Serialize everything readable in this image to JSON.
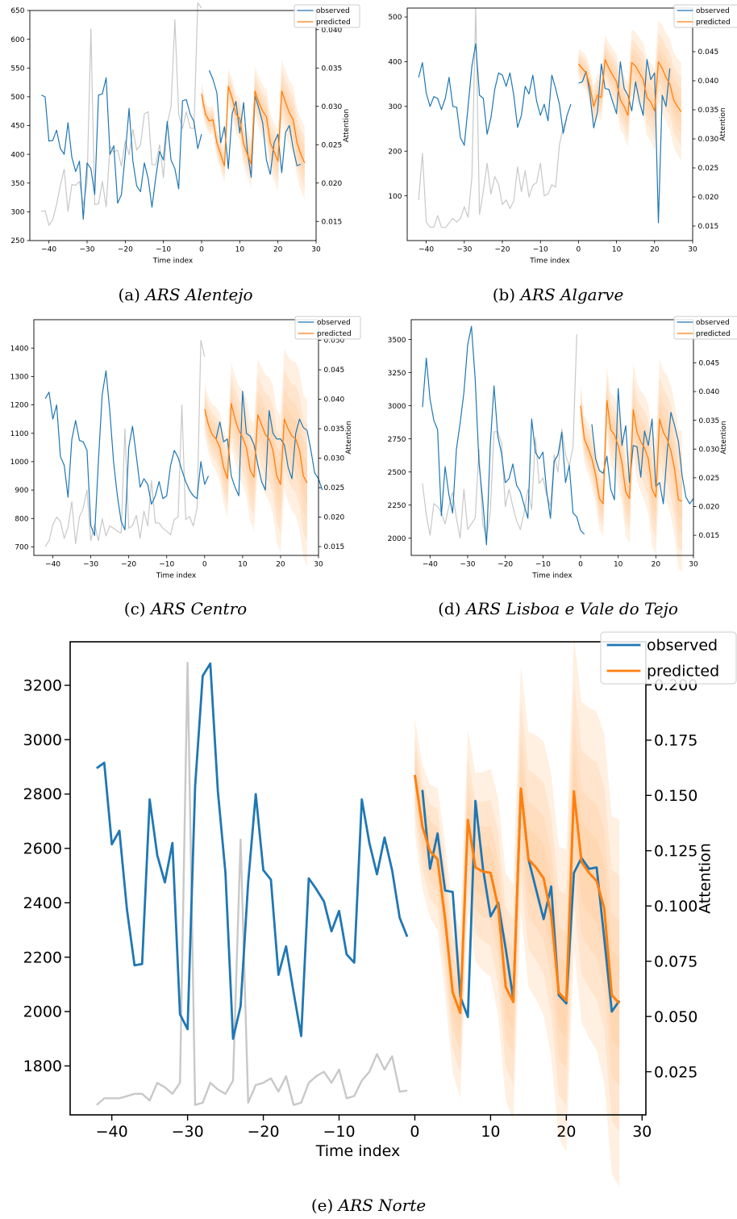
{
  "legend": {
    "observed": "observed",
    "predicted": "predicted"
  },
  "colors": {
    "observed": "#1f77b4",
    "predicted": "#ff7f0e",
    "attention": "#c8c8c8",
    "band": "#ffc896"
  },
  "chart_data": [
    {
      "id": "a",
      "type": "line",
      "caption_prefix": "(a)",
      "caption_title": "ARS Alentejo",
      "xlabel": "Time index",
      "y2label": "Attention",
      "xlim": [
        -45,
        30
      ],
      "ylim": [
        250,
        650
      ],
      "y2lim": [
        0.0125,
        0.0425
      ],
      "xticks": [
        -40,
        -30,
        -20,
        -10,
        0,
        10,
        20,
        30
      ],
      "yticks": [
        250,
        300,
        350,
        400,
        450,
        500,
        550,
        600,
        650
      ],
      "y2ticks": [
        0.015,
        0.02,
        0.025,
        0.03,
        0.035,
        0.04
      ],
      "observed": {
        "x0": -42,
        "values": [
          503,
          500,
          423,
          424,
          442,
          410,
          400,
          455,
          395,
          370,
          388,
          287,
          385,
          375,
          330,
          503,
          505,
          533,
          400,
          415,
          315,
          330,
          400,
          480,
          388,
          345,
          335,
          385,
          358,
          308,
          360,
          405,
          390,
          457,
          390,
          375,
          340,
          493,
          495,
          470,
          457,
          410,
          435,
          null,
          546,
          530,
          507,
          420,
          448,
          375,
          470,
          492,
          437,
          490,
          405,
          360,
          502,
          480,
          455,
          390,
          365,
          420,
          435,
          368,
          438,
          450,
          410,
          380,
          383
        ]
      },
      "predicted": {
        "x0": 0,
        "values": [
          505,
          470,
          458,
          460,
          420,
          400,
          380,
          518,
          498,
          470,
          462,
          418,
          400,
          383,
          510,
          490,
          475,
          465,
          420,
          405,
          388,
          510,
          490,
          472,
          460,
          420,
          400,
          385
        ]
      },
      "band_width": 0.09,
      "attention": {
        "x0": -42,
        "values": [
          0.0163,
          0.0164,
          0.0145,
          0.0152,
          0.0172,
          0.0197,
          0.0218,
          0.0163,
          0.0198,
          0.0197,
          0.0202,
          0.0171,
          0.0201,
          0.0401,
          0.0172,
          0.0173,
          0.0202,
          0.0169,
          0.0248,
          0.024,
          0.0243,
          0.0222,
          0.0255,
          0.0237,
          0.027,
          0.0243,
          0.025,
          0.029,
          0.0293,
          0.0224,
          0.0224,
          0.025,
          0.0207,
          0.0277,
          0.03,
          0.0413,
          0.029,
          0.0271,
          0.0293,
          0.0272,
          0.0271,
          0.0435,
          0.0428
        ]
      }
    },
    {
      "id": "b",
      "type": "line",
      "caption_prefix": "(b)",
      "caption_title": "ARS Algarve",
      "xlabel": "Time index",
      "y2label": "Attention",
      "xlim": [
        -45,
        30
      ],
      "ylim": [
        0,
        520
      ],
      "y2lim": [
        0.0125,
        0.0525
      ],
      "xticks": [
        -40,
        -30,
        -20,
        -10,
        0,
        10,
        20,
        30
      ],
      "yticks": [
        100,
        200,
        300,
        400,
        500
      ],
      "y2ticks": [
        0.015,
        0.02,
        0.025,
        0.03,
        0.035,
        0.04,
        0.045,
        0.05
      ],
      "observed": {
        "x0": -42,
        "values": [
          365,
          398,
          330,
          300,
          322,
          318,
          293,
          318,
          365,
          300,
          298,
          230,
          213,
          300,
          390,
          440,
          325,
          318,
          238,
          275,
          338,
          375,
          370,
          345,
          375,
          325,
          253,
          280,
          345,
          328,
          370,
          312,
          280,
          305,
          268,
          370,
          340,
          305,
          240,
          280,
          305,
          null,
          352,
          355,
          378,
          328,
          252,
          288,
          395,
          340,
          338,
          310,
          284,
          400,
          340,
          325,
          290,
          355,
          312,
          280,
          405,
          360,
          375,
          40,
          325,
          300,
          385
        ]
      },
      "predicted": {
        "x0": 0,
        "values": [
          395,
          385,
          375,
          345,
          300,
          325,
          320,
          405,
          385,
          370,
          355,
          315,
          300,
          280,
          398,
          390,
          375,
          360,
          320,
          310,
          290,
          400,
          385,
          365,
          350,
          315,
          300,
          288
        ]
      },
      "band_width": 0.12,
      "attention": {
        "x0": -42,
        "values": [
          0.0195,
          0.0275,
          0.0157,
          0.0148,
          0.0148,
          0.0168,
          0.0148,
          0.0147,
          0.0155,
          0.0163,
          0.0157,
          0.0163,
          0.0183,
          0.0165,
          0.0235,
          0.0525,
          0.017,
          0.021,
          0.0258,
          0.0205,
          0.0235,
          0.0222,
          0.0187,
          0.0195,
          0.018,
          0.0193,
          0.0252,
          0.0209,
          0.0245,
          0.02,
          0.022,
          0.0225,
          0.0258,
          0.0202,
          0.0205,
          0.0221,
          0.0217,
          0.029,
          0.032,
          0.0335
        ]
      }
    },
    {
      "id": "c",
      "type": "line",
      "caption_prefix": "(c)",
      "caption_title": "ARS Centro",
      "xlabel": "Time index",
      "y2label": "Attention",
      "xlim": [
        -45,
        30
      ],
      "ylim": [
        670,
        1500
      ],
      "y2lim": [
        0.0135,
        0.0535
      ],
      "xticks": [
        -40,
        -30,
        -20,
        -10,
        0,
        10,
        20,
        30
      ],
      "yticks": [
        700,
        800,
        900,
        1000,
        1100,
        1200,
        1300,
        1400
      ],
      "y2ticks": [
        0.015,
        0.02,
        0.025,
        0.03,
        0.035,
        0.04,
        0.045,
        0.05
      ],
      "observed": {
        "x0": -42,
        "values": [
          1222,
          1245,
          1150,
          1200,
          1018,
          987,
          875,
          1078,
          1145,
          1075,
          1070,
          1040,
          775,
          740,
          1000,
          1235,
          1320,
          1180,
          1000,
          880,
          790,
          760,
          1050,
          1125,
          1020,
          910,
          940,
          920,
          850,
          880,
          930,
          870,
          880,
          985,
          1040,
          1015,
          970,
          930,
          900,
          880,
          870,
          1000,
          920,
          950,
          null,
          1080,
          1140,
          1070,
          1080,
          950,
          910,
          880,
          1248,
          1100,
          1090,
          1060,
          990,
          930,
          900,
          1180,
          1100,
          1080,
          1080,
          1060,
          980,
          940,
          1100,
          1150,
          1120,
          1110,
          1040,
          960,
          940,
          900
        ]
      },
      "predicted": {
        "x0": 0,
        "values": [
          1185,
          1130,
          1095,
          1080,
          1050,
          980,
          940,
          1205,
          1150,
          1110,
          1085,
          1050,
          970,
          945,
          1165,
          1130,
          1095,
          1080,
          1040,
          950,
          920,
          1150,
          1115,
          1090,
          1080,
          1040,
          950,
          925
        ]
      },
      "band_width": 0.2,
      "attention": {
        "x0": -42,
        "values": [
          0.015,
          0.016,
          0.0187,
          0.02,
          0.0193,
          0.0164,
          0.0183,
          0.0226,
          0.0155,
          0.02,
          0.0215,
          0.0246,
          0.016,
          0.0188,
          0.016,
          0.0197,
          0.0168,
          0.0185,
          0.0181,
          0.0176,
          0.0173,
          0.035,
          0.0181,
          0.0186,
          0.0203,
          0.0164,
          0.021,
          0.0185,
          0.0262,
          0.019,
          0.019,
          0.0181,
          0.0176,
          0.017,
          0.0196,
          0.02,
          0.039,
          0.0196,
          0.0201,
          0.0185,
          0.0215,
          0.05,
          0.0472
        ]
      }
    },
    {
      "id": "d",
      "type": "line",
      "caption_prefix": "(d)",
      "caption_title": "ARS Lisboa e Vale do Tejo",
      "xlabel": "Time index",
      "y2label": "Attention",
      "xlim": [
        -45,
        30
      ],
      "ylim": [
        1870,
        3650
      ],
      "y2lim": [
        0.0115,
        0.0525
      ],
      "xticks": [
        -40,
        -30,
        -20,
        -10,
        0,
        10,
        20,
        30
      ],
      "yticks": [
        2000,
        2250,
        2500,
        2750,
        3000,
        3250,
        3500
      ],
      "y2ticks": [
        0.015,
        0.02,
        0.025,
        0.03,
        0.035,
        0.04,
        0.045,
        0.05
      ],
      "observed": {
        "x0": -42,
        "values": [
          2990,
          3360,
          3050,
          2890,
          2820,
          2170,
          2540,
          2330,
          2190,
          2670,
          2870,
          3100,
          3460,
          3600,
          3200,
          2570,
          2280,
          1950,
          2700,
          3150,
          2770,
          2640,
          2420,
          2450,
          2560,
          2400,
          2350,
          2250,
          2150,
          2900,
          2650,
          2600,
          2650,
          2350,
          2150,
          2580,
          2630,
          2800,
          2420,
          2550,
          2190,
          2160,
          2060,
          2030,
          null,
          2860,
          2600,
          2510,
          2490,
          2620,
          2370,
          2290,
          3130,
          2700,
          2850,
          2420,
          2700,
          2690,
          2460,
          2810,
          2700,
          2900,
          2390,
          2420,
          2260,
          2650,
          2950,
          2850,
          2730,
          2470,
          2310,
          2260,
          2300
        ]
      },
      "predicted": {
        "x0": 0,
        "values": [
          3000,
          2750,
          2680,
          2600,
          2480,
          2300,
          2260,
          3040,
          2820,
          2780,
          2700,
          2570,
          2350,
          2300,
          2970,
          2800,
          2730,
          2680,
          2600,
          2370,
          2310,
          2900,
          2800,
          2750,
          2660,
          2520,
          2290,
          2280
        ]
      },
      "band_width": 0.17,
      "attention": {
        "x0": -42,
        "values": [
          0.024,
          0.0185,
          0.015,
          0.0205,
          0.02,
          0.019,
          0.017,
          0.02,
          0.0225,
          0.018,
          0.0145,
          0.023,
          0.016,
          0.017,
          0.018,
          0.03,
          0.017,
          0.0145,
          0.019,
          0.033,
          0.033,
          0.031,
          0.02,
          0.023,
          0.02,
          0.0175,
          0.016,
          0.019,
          0.023,
          0.0195,
          0.032,
          0.024,
          0.025,
          0.022,
          0.02,
          0.029,
          0.026,
          0.0335,
          0.029,
          0.027,
          0.0305,
          0.05
        ]
      }
    },
    {
      "id": "e",
      "type": "line",
      "caption_prefix": "(e)",
      "caption_title": "ARS Norte",
      "xlabel": "Time index",
      "y2label": "Attention",
      "xlim": [
        -45.5,
        30.5
      ],
      "ylim": [
        1620,
        3360
      ],
      "y2lim": [
        0.0055,
        0.2195
      ],
      "xticks": [
        -40,
        -30,
        -20,
        -10,
        0,
        10,
        20,
        30
      ],
      "yticks": [
        1800,
        2000,
        2200,
        2400,
        2600,
        2800,
        3000,
        3200
      ],
      "y2ticks": [
        0.025,
        0.05,
        0.075,
        0.1,
        0.125,
        0.15,
        0.175,
        0.2
      ],
      "observed": {
        "x0": -42,
        "values": [
          2895,
          2915,
          2615,
          2665,
          2375,
          2170,
          2175,
          2780,
          2575,
          2475,
          2620,
          1990,
          1935,
          2830,
          3235,
          3280,
          2810,
          2510,
          1900,
          2020,
          2475,
          2800,
          2520,
          2485,
          2135,
          2240,
          2070,
          1910,
          2490,
          2450,
          2405,
          2295,
          2370,
          2210,
          2180,
          2780,
          2620,
          2505,
          2640,
          2520,
          2345,
          2275,
          null,
          2815,
          2525,
          2655,
          2445,
          2440,
          2055,
          1980,
          2775,
          2525,
          2350,
          2400,
          2230,
          2045,
          2820,
          2560,
          2450,
          2340,
          2460,
          2060,
          2030,
          2510,
          2565,
          2525,
          2530,
          2270,
          2000,
          2040
        ]
      },
      "predicted": {
        "x0": 0,
        "values": [
          2870,
          2680,
          2590,
          2560,
          2340,
          2070,
          1995,
          2705,
          2530,
          2515,
          2510,
          2385,
          2090,
          2035,
          2820,
          2560,
          2530,
          2490,
          2355,
          2070,
          2040,
          2810,
          2550,
          2510,
          2480,
          2380,
          2060,
          2030
        ]
      },
      "band_width": 0.22,
      "attention": {
        "x0": -42,
        "values": [
          0.01,
          0.013,
          0.013,
          0.013,
          0.014,
          0.015,
          0.015,
          0.012,
          0.02,
          0.018,
          0.015,
          0.02,
          0.21,
          0.01,
          0.011,
          0.02,
          0.017,
          0.015,
          0.021,
          0.13,
          0.011,
          0.019,
          0.02,
          0.022,
          0.016,
          0.023,
          0.01,
          0.011,
          0.02,
          0.023,
          0.025,
          0.02,
          0.026,
          0.013,
          0.014,
          0.021,
          0.025,
          0.033,
          0.026,
          0.032,
          0.016,
          0.0165
        ]
      }
    }
  ]
}
